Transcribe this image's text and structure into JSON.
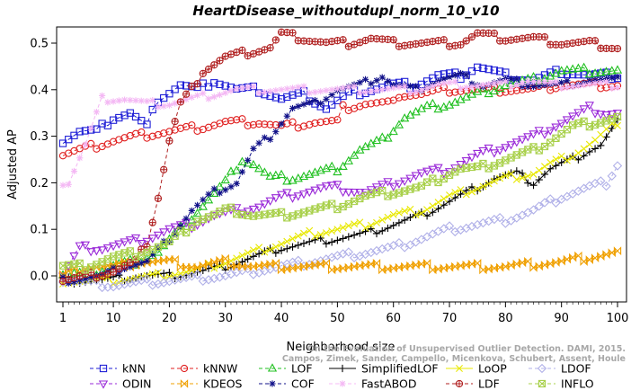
{
  "chart_data": {
    "type": "line",
    "title": "HeartDisease_withoutdupl_norm_10_v10",
    "xlabel": "Neighborhood size",
    "ylabel": "Adjusted AP",
    "xlim": [
      1,
      100
    ],
    "ylim": [
      -0.03,
      0.53
    ],
    "xticks": [
      "1",
      "10",
      "20",
      "30",
      "40",
      "50",
      "60",
      "70",
      "80",
      "90",
      "100"
    ],
    "yticks": [
      "0.0",
      "0.1",
      "0.2",
      "0.3",
      "0.4",
      "0.5"
    ],
    "grid": false,
    "legend_position": "bottom",
    "credit": "Campos, Zimek, Sander, Campello, Micenkova, Schubert, Assent, Houle\nOn the Evaluation of Unsupervised Outlier Detection. DAMI, 2015.",
    "series": [
      {
        "name": "kNN",
        "color": "#1f1fd6",
        "marker": "square",
        "line": "dashed",
        "points": [
          [
            1,
            0.29
          ],
          [
            4,
            0.31
          ],
          [
            7,
            0.31
          ],
          [
            10,
            0.34
          ],
          [
            13,
            0.35
          ],
          [
            16,
            0.32
          ],
          [
            18,
            0.38
          ],
          [
            22,
            0.41
          ],
          [
            25,
            0.4
          ],
          [
            28,
            0.42
          ],
          [
            32,
            0.4
          ],
          [
            36,
            0.4
          ],
          [
            40,
            0.38
          ],
          [
            44,
            0.39
          ],
          [
            48,
            0.36
          ],
          [
            52,
            0.39
          ],
          [
            56,
            0.4
          ],
          [
            60,
            0.41
          ],
          [
            64,
            0.41
          ],
          [
            68,
            0.43
          ],
          [
            72,
            0.43
          ],
          [
            75,
            0.45
          ],
          [
            80,
            0.43
          ],
          [
            85,
            0.42
          ],
          [
            90,
            0.44
          ],
          [
            95,
            0.43
          ],
          [
            100,
            0.43
          ]
        ]
      },
      {
        "name": "kNNW",
        "color": "#e02020",
        "marker": "circle",
        "line": "dashed",
        "points": [
          [
            1,
            0.26
          ],
          [
            4,
            0.27
          ],
          [
            7,
            0.28
          ],
          [
            10,
            0.29
          ],
          [
            14,
            0.3
          ],
          [
            20,
            0.31
          ],
          [
            26,
            0.32
          ],
          [
            30,
            0.33
          ],
          [
            36,
            0.33
          ],
          [
            40,
            0.32
          ],
          [
            46,
            0.33
          ],
          [
            50,
            0.33
          ],
          [
            51,
            0.36
          ],
          [
            55,
            0.37
          ],
          [
            60,
            0.37
          ],
          [
            61,
            0.39
          ],
          [
            65,
            0.39
          ],
          [
            70,
            0.4
          ],
          [
            75,
            0.4
          ],
          [
            80,
            0.4
          ],
          [
            85,
            0.4
          ],
          [
            90,
            0.41
          ],
          [
            95,
            0.41
          ],
          [
            100,
            0.41
          ]
        ]
      },
      {
        "name": "LOF",
        "color": "#20c020",
        "marker": "triangle-up",
        "line": "dashed",
        "points": [
          [
            1,
            0.0
          ],
          [
            6,
            0.0
          ],
          [
            10,
            0.02
          ],
          [
            14,
            0.03
          ],
          [
            18,
            0.05
          ],
          [
            22,
            0.1
          ],
          [
            26,
            0.15
          ],
          [
            30,
            0.2
          ],
          [
            33,
            0.25
          ],
          [
            35,
            0.24
          ],
          [
            38,
            0.21
          ],
          [
            42,
            0.21
          ],
          [
            46,
            0.22
          ],
          [
            50,
            0.23
          ],
          [
            54,
            0.27
          ],
          [
            58,
            0.29
          ],
          [
            62,
            0.34
          ],
          [
            66,
            0.36
          ],
          [
            70,
            0.37
          ],
          [
            75,
            0.39
          ],
          [
            80,
            0.41
          ],
          [
            85,
            0.42
          ],
          [
            90,
            0.44
          ],
          [
            95,
            0.44
          ],
          [
            100,
            0.44
          ]
        ]
      },
      {
        "name": "SimplifiedLOF",
        "color": "#000000",
        "marker": "plus",
        "line": "solid",
        "points": [
          [
            1,
            -0.01
          ],
          [
            8,
            -0.01
          ],
          [
            15,
            0.0
          ],
          [
            20,
            0.0
          ],
          [
            26,
            0.01
          ],
          [
            30,
            0.02
          ],
          [
            35,
            0.04
          ],
          [
            40,
            0.06
          ],
          [
            45,
            0.07
          ],
          [
            50,
            0.08
          ],
          [
            55,
            0.09
          ],
          [
            60,
            0.11
          ],
          [
            65,
            0.13
          ],
          [
            70,
            0.16
          ],
          [
            75,
            0.19
          ],
          [
            78,
            0.21
          ],
          [
            82,
            0.22
          ],
          [
            85,
            0.2
          ],
          [
            88,
            0.23
          ],
          [
            92,
            0.25
          ],
          [
            95,
            0.27
          ],
          [
            97,
            0.28
          ],
          [
            100,
            0.33
          ]
        ]
      },
      {
        "name": "LoOP",
        "color": "#e8e800",
        "marker": "cross",
        "line": "solid",
        "points": [
          [
            1,
            -0.01
          ],
          [
            10,
            -0.01
          ],
          [
            18,
            0.0
          ],
          [
            24,
            0.01
          ],
          [
            30,
            0.03
          ],
          [
            35,
            0.05
          ],
          [
            40,
            0.07
          ],
          [
            45,
            0.09
          ],
          [
            50,
            0.1
          ],
          [
            55,
            0.11
          ],
          [
            60,
            0.13
          ],
          [
            65,
            0.14
          ],
          [
            70,
            0.17
          ],
          [
            75,
            0.19
          ],
          [
            80,
            0.21
          ],
          [
            85,
            0.22
          ],
          [
            88,
            0.24
          ],
          [
            92,
            0.26
          ],
          [
            96,
            0.29
          ],
          [
            100,
            0.33
          ]
        ]
      },
      {
        "name": "LDOF",
        "color": "#b0b0e8",
        "marker": "diamond",
        "line": "dashed",
        "points": [
          [
            1,
            -0.01
          ],
          [
            10,
            -0.02
          ],
          [
            20,
            -0.01
          ],
          [
            30,
            0.0
          ],
          [
            40,
            0.02
          ],
          [
            50,
            0.04
          ],
          [
            60,
            0.06
          ],
          [
            65,
            0.08
          ],
          [
            70,
            0.1
          ],
          [
            75,
            0.11
          ],
          [
            80,
            0.12
          ],
          [
            85,
            0.14
          ],
          [
            90,
            0.17
          ],
          [
            95,
            0.19
          ],
          [
            98,
            0.2
          ],
          [
            100,
            0.24
          ]
        ]
      },
      {
        "name": "ODIN",
        "color": "#9a2ad8",
        "marker": "triangle-down",
        "line": "dashed",
        "points": [
          [
            1,
            0.0
          ],
          [
            4,
            0.06
          ],
          [
            8,
            0.06
          ],
          [
            12,
            0.07
          ],
          [
            16,
            0.08
          ],
          [
            20,
            0.1
          ],
          [
            24,
            0.11
          ],
          [
            28,
            0.13
          ],
          [
            32,
            0.14
          ],
          [
            36,
            0.15
          ],
          [
            40,
            0.17
          ],
          [
            44,
            0.18
          ],
          [
            48,
            0.19
          ],
          [
            50,
            0.19
          ],
          [
            55,
            0.18
          ],
          [
            60,
            0.2
          ],
          [
            65,
            0.22
          ],
          [
            70,
            0.23
          ],
          [
            75,
            0.26
          ],
          [
            80,
            0.28
          ],
          [
            85,
            0.3
          ],
          [
            90,
            0.33
          ],
          [
            95,
            0.36
          ],
          [
            98,
            0.35
          ],
          [
            100,
            0.35
          ]
        ]
      },
      {
        "name": "KDEOS",
        "color": "#f0a000",
        "marker": "bowtie",
        "line": "dashed",
        "points": [
          [
            1,
            0.0
          ],
          [
            5,
            0.02
          ],
          [
            10,
            0.02
          ],
          [
            15,
            0.03
          ],
          [
            20,
            0.03
          ],
          [
            25,
            0.02
          ],
          [
            30,
            0.03
          ],
          [
            35,
            0.02
          ],
          [
            40,
            0.02
          ],
          [
            50,
            0.02
          ],
          [
            60,
            0.02
          ],
          [
            70,
            0.02
          ],
          [
            80,
            0.02
          ],
          [
            90,
            0.03
          ],
          [
            95,
            0.04
          ],
          [
            100,
            0.05
          ]
        ]
      },
      {
        "name": "COF",
        "color": "#101088",
        "marker": "asterisk",
        "line": "dashed",
        "points": [
          [
            1,
            -0.01
          ],
          [
            8,
            0.0
          ],
          [
            12,
            0.02
          ],
          [
            16,
            0.03
          ],
          [
            20,
            0.08
          ],
          [
            24,
            0.14
          ],
          [
            28,
            0.18
          ],
          [
            32,
            0.2
          ],
          [
            35,
            0.27
          ],
          [
            38,
            0.3
          ],
          [
            40,
            0.33
          ],
          [
            42,
            0.36
          ],
          [
            46,
            0.37
          ],
          [
            50,
            0.4
          ],
          [
            54,
            0.41
          ],
          [
            58,
            0.43
          ],
          [
            60,
            0.41
          ],
          [
            64,
            0.4
          ],
          [
            68,
            0.42
          ],
          [
            72,
            0.43
          ],
          [
            76,
            0.41
          ],
          [
            80,
            0.42
          ],
          [
            85,
            0.41
          ],
          [
            90,
            0.41
          ],
          [
            95,
            0.42
          ],
          [
            100,
            0.42
          ]
        ]
      },
      {
        "name": "FastABOD",
        "color": "#f4b8f4",
        "marker": "star",
        "line": "dashed",
        "points": [
          [
            2,
            0.2
          ],
          [
            5,
            0.28
          ],
          [
            8,
            0.38
          ],
          [
            12,
            0.38
          ],
          [
            16,
            0.37
          ],
          [
            20,
            0.37
          ],
          [
            24,
            0.38
          ],
          [
            28,
            0.39
          ],
          [
            32,
            0.4
          ],
          [
            36,
            0.4
          ],
          [
            40,
            0.4
          ],
          [
            44,
            0.4
          ],
          [
            48,
            0.4
          ],
          [
            52,
            0.4
          ],
          [
            56,
            0.4
          ],
          [
            60,
            0.4
          ],
          [
            64,
            0.4
          ],
          [
            68,
            0.41
          ],
          [
            72,
            0.41
          ],
          [
            76,
            0.41
          ],
          [
            80,
            0.41
          ],
          [
            84,
            0.42
          ],
          [
            88,
            0.41
          ],
          [
            92,
            0.41
          ],
          [
            96,
            0.41
          ],
          [
            100,
            0.41
          ]
        ]
      },
      {
        "name": "LDF",
        "color": "#b02020",
        "marker": "circle-plus",
        "line": "dashed",
        "points": [
          [
            1,
            -0.01
          ],
          [
            6,
            0.0
          ],
          [
            10,
            0.01
          ],
          [
            14,
            0.03
          ],
          [
            16,
            0.07
          ],
          [
            18,
            0.17
          ],
          [
            20,
            0.29
          ],
          [
            22,
            0.37
          ],
          [
            24,
            0.4
          ],
          [
            26,
            0.44
          ],
          [
            30,
            0.47
          ],
          [
            34,
            0.48
          ],
          [
            38,
            0.49
          ],
          [
            40,
            0.52
          ],
          [
            44,
            0.51
          ],
          [
            48,
            0.5
          ],
          [
            52,
            0.5
          ],
          [
            56,
            0.51
          ],
          [
            60,
            0.5
          ],
          [
            64,
            0.5
          ],
          [
            68,
            0.5
          ],
          [
            72,
            0.5
          ],
          [
            75,
            0.52
          ],
          [
            80,
            0.51
          ],
          [
            85,
            0.51
          ],
          [
            90,
            0.5
          ],
          [
            95,
            0.5
          ],
          [
            100,
            0.49
          ]
        ]
      },
      {
        "name": "INFLO",
        "color": "#a8d04a",
        "marker": "square-cross",
        "line": "dashed",
        "points": [
          [
            1,
            0.02
          ],
          [
            5,
            0.02
          ],
          [
            10,
            0.04
          ],
          [
            15,
            0.05
          ],
          [
            20,
            0.07
          ],
          [
            25,
            0.12
          ],
          [
            28,
            0.13
          ],
          [
            30,
            0.14
          ],
          [
            32,
            0.14
          ],
          [
            35,
            0.13
          ],
          [
            40,
            0.13
          ],
          [
            45,
            0.14
          ],
          [
            50,
            0.15
          ],
          [
            55,
            0.17
          ],
          [
            60,
            0.18
          ],
          [
            65,
            0.19
          ],
          [
            70,
            0.22
          ],
          [
            72,
            0.23
          ],
          [
            75,
            0.23
          ],
          [
            80,
            0.25
          ],
          [
            85,
            0.27
          ],
          [
            88,
            0.29
          ],
          [
            92,
            0.32
          ],
          [
            96,
            0.33
          ],
          [
            100,
            0.34
          ]
        ]
      }
    ]
  }
}
